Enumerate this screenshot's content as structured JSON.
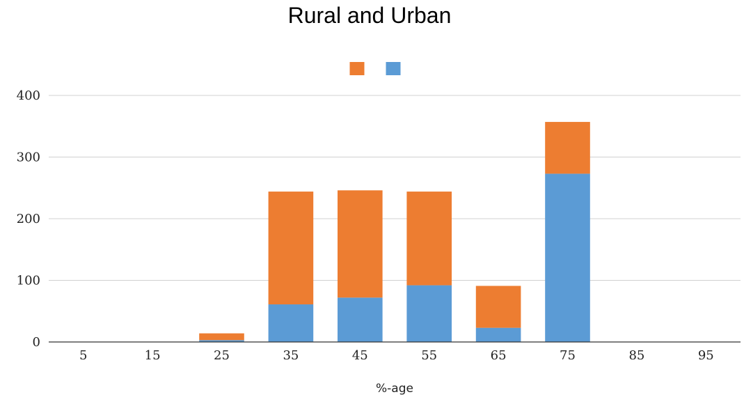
{
  "chart_data": {
    "type": "bar",
    "stacked": true,
    "title": "Rural and Urban",
    "xlabel": "%-age",
    "ylabel": "",
    "categories": [
      "5",
      "15",
      "25",
      "35",
      "45",
      "55",
      "65",
      "75",
      "85",
      "95"
    ],
    "series": [
      {
        "color": "#5b9bd5",
        "values": [
          0,
          0,
          3,
          61,
          72,
          92,
          23,
          273,
          0,
          0
        ]
      },
      {
        "color": "#ed7d31",
        "values": [
          0,
          0,
          11,
          183,
          174,
          152,
          68,
          84,
          0,
          0
        ]
      }
    ],
    "ylim": [
      0,
      400
    ],
    "yticks": [
      0,
      100,
      200,
      300,
      400
    ],
    "grid": true,
    "legend_position": "top"
  }
}
